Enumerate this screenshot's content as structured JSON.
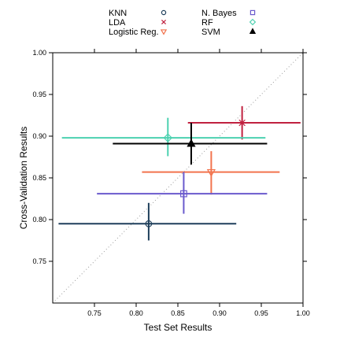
{
  "chart_data": {
    "type": "scatter",
    "title": "",
    "xlabel": "Test Set Results",
    "ylabel": "Cross-Validation Results",
    "xlim": [
      0.7,
      1.0
    ],
    "ylim": [
      0.7,
      1.0
    ],
    "x_ticks": [
      "0.75",
      "0.80",
      "0.85",
      "0.90",
      "0.95",
      "1.00"
    ],
    "y_ticks": [
      "0.75",
      "0.80",
      "0.85",
      "0.90",
      "0.95",
      "1.00"
    ],
    "grid": false,
    "reference_line": "y = x",
    "legend": {
      "placement": "top",
      "columns": [
        [
          {
            "label": "KNN",
            "symbol": "circle",
            "color": "#1f3f5b"
          },
          {
            "label": "LDA",
            "symbol": "x",
            "color": "#c0213f"
          },
          {
            "label": "Logistic Reg.",
            "symbol": "triangle-down",
            "color": "#f2734d"
          }
        ],
        [
          {
            "label": "N. Bayes",
            "symbol": "square",
            "color": "#6a5acd"
          },
          {
            "label": "RF",
            "symbol": "diamond",
            "color": "#4cd1b0"
          },
          {
            "label": "SVM",
            "symbol": "triangle-filled",
            "color": "#000000"
          }
        ]
      ]
    },
    "series": [
      {
        "name": "KNN",
        "marker": "circle",
        "color": "#1f3f5b",
        "x": 0.815,
        "y": 0.795,
        "x_range": [
          0.707,
          0.92
        ],
        "y_range": [
          0.775,
          0.82
        ]
      },
      {
        "name": "LDA",
        "marker": "x",
        "color": "#c0213f",
        "x": 0.927,
        "y": 0.916,
        "x_range": [
          0.862,
          0.997
        ],
        "y_range": [
          0.896,
          0.936
        ]
      },
      {
        "name": "Logistic Reg.",
        "marker": "triangle-down",
        "color": "#f2734d",
        "x": 0.89,
        "y": 0.857,
        "x_range": [
          0.807,
          0.972
        ],
        "y_range": [
          0.83,
          0.882
        ]
      },
      {
        "name": "N. Bayes",
        "marker": "square",
        "color": "#6a5acd",
        "x": 0.857,
        "y": 0.831,
        "x_range": [
          0.753,
          0.957
        ],
        "y_range": [
          0.807,
          0.857
        ]
      },
      {
        "name": "RF",
        "marker": "diamond",
        "color": "#4cd1b0",
        "x": 0.838,
        "y": 0.898,
        "x_range": [
          0.711,
          0.955
        ],
        "y_range": [
          0.876,
          0.922
        ]
      },
      {
        "name": "SVM",
        "marker": "triangle-filled",
        "color": "#000000",
        "x": 0.866,
        "y": 0.891,
        "x_range": [
          0.772,
          0.957
        ],
        "y_range": [
          0.866,
          0.916
        ]
      }
    ]
  }
}
